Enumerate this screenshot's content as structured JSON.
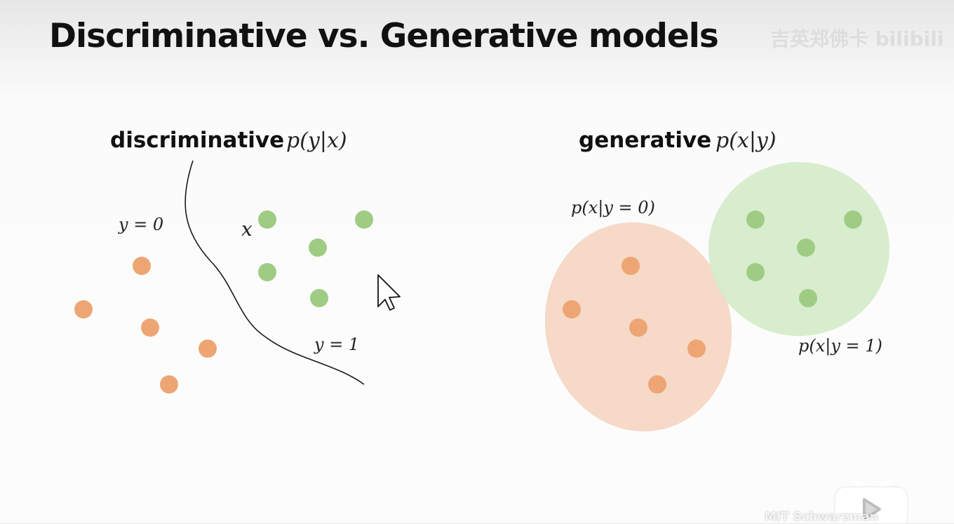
{
  "slide": {
    "title": "Discriminative vs. Generative models"
  },
  "discriminative": {
    "heading": "discriminative",
    "formula": "p(y|x)",
    "label_class0": "y = 0",
    "label_class1": "y = 1",
    "label_point": "x"
  },
  "generative": {
    "heading": "generative",
    "formula": "p(x|y)",
    "label_class0": "p(x|y = 0)",
    "label_class1": "p(x|y = 1)"
  },
  "watermarks": {
    "top": "吉英郑佛卡 bilibili",
    "bottom": "MIT Schwarzman"
  },
  "colors": {
    "class0_point": "#eea574",
    "class1_point": "#9fcc83",
    "class0_region": "#f5d7c4",
    "class1_region": "#d6eccb",
    "boundary": "#1a1a1a"
  },
  "icons": {
    "cursor": "mouse-pointer-arrow-icon",
    "play": "bilibili-tv-play-icon"
  }
}
